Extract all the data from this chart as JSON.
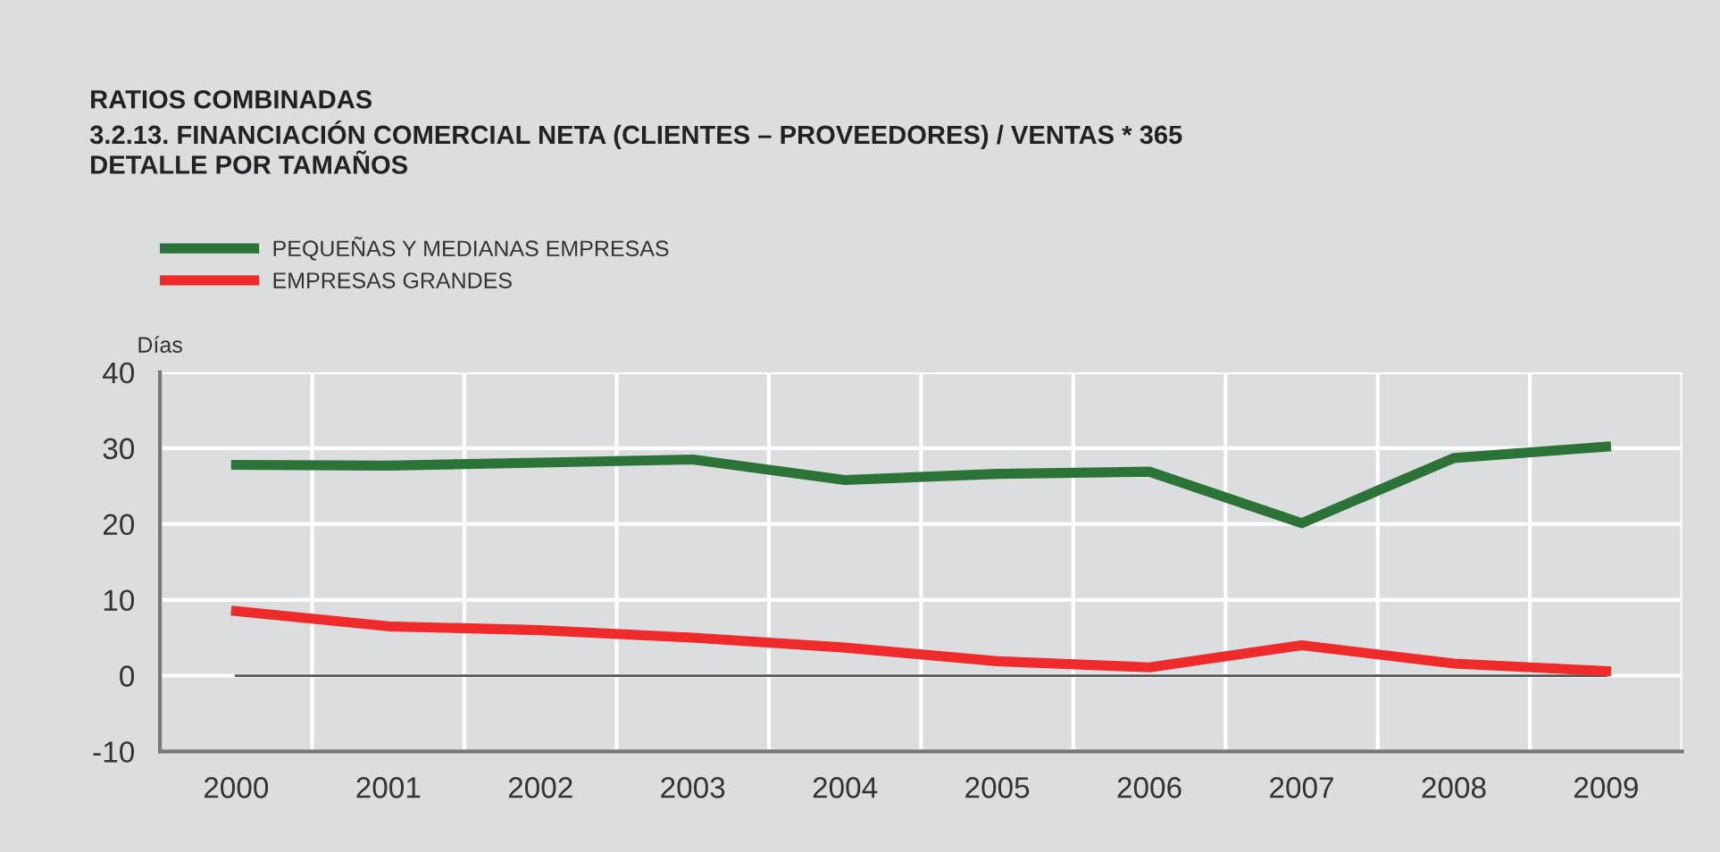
{
  "chart_data": {
    "type": "line",
    "title": "RATIOS COMBINADAS\n3.2.13. FINANCIACIÓN COMERCIAL NETA (CLIENTES – PROVEEDORES) / VENTAS * 365\nDETALLE POR TAMAÑOS",
    "ylabel": "Días",
    "categories": [
      "2000",
      "2001",
      "2002",
      "2003",
      "2004",
      "2005",
      "2006",
      "2007",
      "2008",
      "2009"
    ],
    "series": [
      {
        "name": "PEQUEÑAS Y MEDIANAS EMPRESAS",
        "color": "#2b7337",
        "values": [
          27.8,
          27.7,
          28.1,
          28.5,
          25.8,
          26.6,
          26.9,
          20.1,
          28.7,
          30.2
        ]
      },
      {
        "name": "EMPRESAS GRANDES",
        "color": "#ee2a2a",
        "values": [
          8.5,
          6.5,
          6.0,
          5.0,
          3.7,
          1.9,
          1.1,
          4.0,
          1.6,
          0.6
        ]
      }
    ],
    "ylim": [
      -10,
      40
    ],
    "yticks": [
      -10,
      0,
      10,
      20,
      30,
      40
    ],
    "ref_lines": [
      {
        "axis": "y",
        "value": 0,
        "color": "#555555"
      }
    ],
    "grid": true,
    "legend": "top left",
    "marker": "none",
    "line_style": "solid"
  }
}
